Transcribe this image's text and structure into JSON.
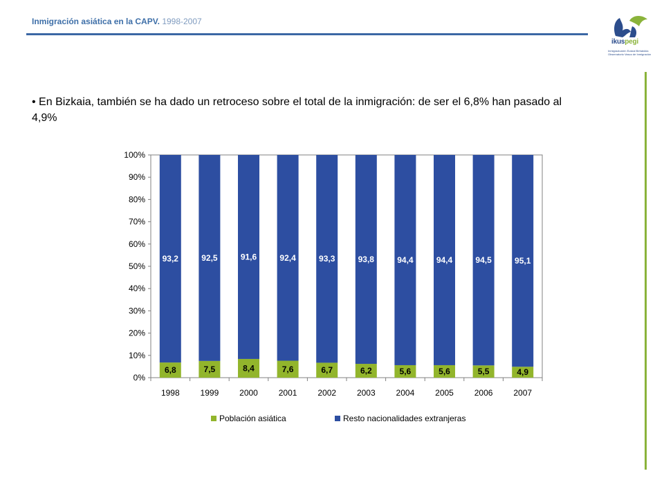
{
  "header": {
    "title": "Inmigración asiática  en la CAPV.",
    "years": "1998-2007"
  },
  "logo": {
    "word_main": "ikus",
    "word_accent": "pegi",
    "subtitle": "Inmigrazioaren Euskal Behatokia Observatorio Vasco de Inmigración"
  },
  "bullet": "• En Bizkaia, también se ha dado un retroceso sobre el total de la inmigración: de ser el 6,8% han pasado al 4,9%",
  "colors": {
    "brand_blue": "#3b67a4",
    "brand_green": "#8ab33a",
    "series_asian": "#92b52c",
    "series_rest": "#2d4ea1"
  },
  "chart_data": {
    "type": "bar",
    "stacked": true,
    "percent": true,
    "categories": [
      "1998",
      "1999",
      "2000",
      "2001",
      "2002",
      "2003",
      "2004",
      "2005",
      "2006",
      "2007"
    ],
    "series": [
      {
        "name": "Población asiática",
        "color": "#92b52c",
        "values": [
          6.8,
          7.5,
          8.4,
          7.6,
          6.7,
          6.2,
          5.6,
          5.6,
          5.5,
          4.9
        ],
        "labels": [
          "6,8",
          "7,5",
          "8,4",
          "7,6",
          "6,7",
          "6,2",
          "5,6",
          "5,6",
          "5,5",
          "4,9"
        ]
      },
      {
        "name": "Resto nacionalidades extranjeras",
        "color": "#2d4ea1",
        "values": [
          93.2,
          92.5,
          91.6,
          92.4,
          93.3,
          93.8,
          94.4,
          94.4,
          94.5,
          95.1
        ],
        "labels": [
          "93,2",
          "92,5",
          "91,6",
          "92,4",
          "93,3",
          "93,8",
          "94,4",
          "94,4",
          "94,5",
          "95,1"
        ]
      }
    ],
    "yticks": [
      "0%",
      "10%",
      "20%",
      "30%",
      "40%",
      "50%",
      "60%",
      "70%",
      "80%",
      "90%",
      "100%"
    ],
    "ylim": [
      0,
      100
    ],
    "legend": "bottom"
  }
}
